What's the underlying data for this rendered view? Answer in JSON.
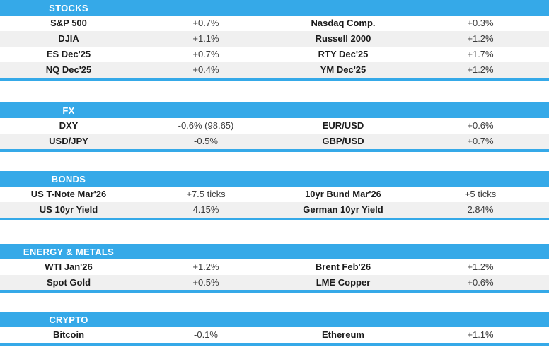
{
  "colors": {
    "header_blue": "#35A9E8",
    "stripe_gray": "#F0F0F0",
    "header_text": "#FFFFFF",
    "label_text": "#1B1B1B",
    "value_text": "#3D3D3D"
  },
  "sections": [
    {
      "header": "STOCKS",
      "rows": [
        {
          "c": [
            "S&P 500",
            "+0.7%",
            "Nasdaq Comp.",
            "+0.3%"
          ]
        },
        {
          "c": [
            "DJIA",
            "+1.1%",
            "Russell 2000",
            "+1.2%"
          ]
        },
        {
          "c": [
            "ES Dec'25",
            "+0.7%",
            "RTY Dec'25",
            "+1.7%"
          ]
        },
        {
          "c": [
            "NQ Dec'25",
            "+0.4%",
            "YM Dec'25",
            "+1.2%"
          ]
        }
      ]
    },
    {
      "header": "FX",
      "rows": [
        {
          "c": [
            "DXY",
            "-0.6% (98.65)",
            "EUR/USD",
            "+0.6%"
          ]
        },
        {
          "c": [
            "USD/JPY",
            "-0.5%",
            "GBP/USD",
            "+0.7%"
          ]
        }
      ]
    },
    {
      "header": "BONDS",
      "rows": [
        {
          "c": [
            "US T-Note Mar'26",
            "+7.5 ticks",
            "10yr Bund Mar'26",
            "+5 ticks"
          ]
        },
        {
          "c": [
            "US 10yr Yield",
            "4.15%",
            "German 10yr Yield",
            "2.84%"
          ]
        }
      ]
    },
    {
      "header": "ENERGY & METALS",
      "rows": [
        {
          "c": [
            "WTI Jan'26",
            "+1.2%",
            "Brent Feb'26",
            "+1.2%"
          ]
        },
        {
          "c": [
            "Spot Gold",
            "+0.5%",
            "LME Copper",
            "+0.6%"
          ]
        }
      ]
    },
    {
      "header": "CRYPTO",
      "rows": [
        {
          "c": [
            "Bitcoin",
            "-0.1%",
            "Ethereum",
            "+1.1%"
          ]
        }
      ]
    }
  ]
}
